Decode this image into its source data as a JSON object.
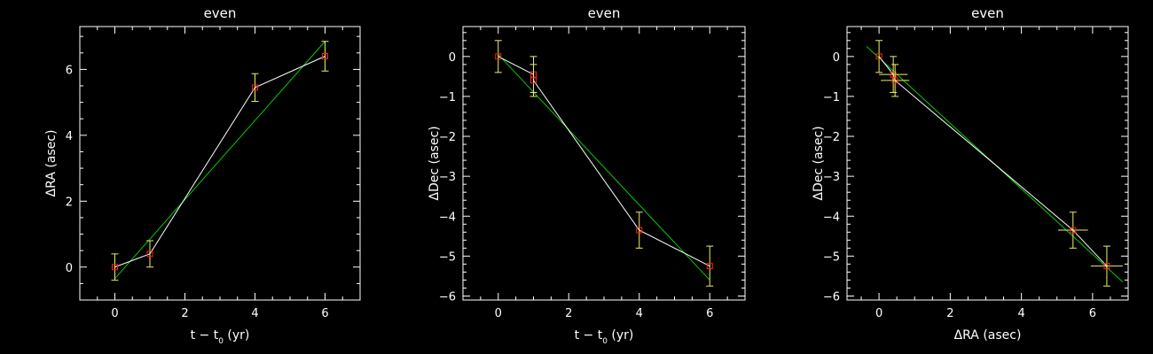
{
  "colors": {
    "background": "#000000",
    "axes": "#ffffff",
    "data_line": "#ffffff",
    "fit_line": "#00cc00",
    "marker": "#ff2020",
    "error_bar": "#f0f060"
  },
  "chart_data": [
    {
      "type": "scatter",
      "title": "even",
      "xlabel": "t − t",
      "xlabel_sub": "0",
      "xlabel_unit": "(yr)",
      "ylabel": "ΔRA (asec)",
      "xlim": [
        -1,
        7.0
      ],
      "ylim": [
        -1,
        7.3
      ],
      "xticks": [
        0,
        2,
        4,
        6
      ],
      "yticks": [
        0,
        2,
        4,
        6
      ],
      "x": [
        0,
        1,
        4,
        6
      ],
      "y": [
        0,
        0.4,
        5.45,
        6.4
      ],
      "yerr": [
        0.4,
        0.4,
        0.42,
        0.45
      ],
      "fit": {
        "x": [
          0,
          6
        ],
        "y": [
          -0.35,
          6.85
        ]
      }
    },
    {
      "type": "scatter",
      "title": "even",
      "xlabel": "t − t",
      "xlabel_sub": "0",
      "xlabel_unit": "(yr)",
      "ylabel": "ΔDec (asec)",
      "xlim": [
        -1,
        7.0
      ],
      "ylim": [
        -6.1,
        0.75
      ],
      "xticks": [
        0,
        2,
        4,
        6
      ],
      "yticks": [
        0,
        -1,
        -2,
        -3,
        -4,
        -5,
        -6
      ],
      "x": [
        0,
        1,
        1,
        4,
        6
      ],
      "y": [
        0,
        -0.45,
        -0.6,
        -4.35,
        -5.25
      ],
      "yerr": [
        0.4,
        0.45,
        0.4,
        0.45,
        0.5
      ],
      "fit": {
        "x": [
          0,
          6
        ],
        "y": [
          0.05,
          -5.6
        ]
      }
    },
    {
      "type": "scatter",
      "title": "even",
      "xlabel": "ΔRA (asec)",
      "ylabel": "ΔDec (asec)",
      "xlim": [
        -0.9,
        7.0
      ],
      "ylim": [
        -6.1,
        0.75
      ],
      "xticks": [
        0,
        2,
        4,
        6
      ],
      "yticks": [
        0,
        -1,
        -2,
        -3,
        -4,
        -5,
        -6
      ],
      "x": [
        0,
        0.4,
        0.45,
        5.45,
        6.4
      ],
      "y": [
        0,
        -0.45,
        -0.6,
        -4.35,
        -5.25
      ],
      "xerr": [
        0.0,
        0.4,
        0.4,
        0.42,
        0.45
      ],
      "yerr": [
        0.4,
        0.45,
        0.4,
        0.45,
        0.5
      ],
      "fit": {
        "x": [
          -0.35,
          6.85
        ],
        "y": [
          0.25,
          -5.65
        ]
      }
    }
  ]
}
